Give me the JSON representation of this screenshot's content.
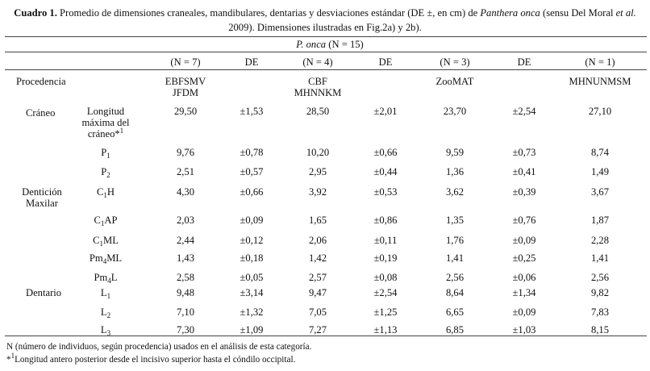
{
  "caption": {
    "label": "Cuadro 1.",
    "text_a": " Promedio de dimensiones craneales, mandibulares, dentarias y desviaciones estándar (DE ±, en cm) de ",
    "species": "Panthera onca",
    "text_b": " (sensu Del Moral ",
    "etal": "et al.",
    "text_c": " 2009). Dimensiones ilustradas en Fig.2a) y 2b)."
  },
  "table": {
    "group_header": {
      "species": "P. onca",
      "count": " (N = 15)"
    },
    "column_headers": [
      "(N = 7)",
      "DE",
      "(N = 4)",
      "DE",
      "(N = 3)",
      "DE",
      "(N = 1)"
    ],
    "procedencia": {
      "label": "Procedencia",
      "values": [
        [
          "EBFSMV",
          "JFDM"
        ],
        [
          "CBF",
          "MHNNKM"
        ],
        [
          "ZooMAT"
        ],
        [
          "MHNUNMSM"
        ]
      ]
    },
    "groups": {
      "craneo": "Cráneo",
      "denticion_line1": "Dentición",
      "denticion_line2": "Maxilar",
      "dentario": "Dentario"
    },
    "craneo_row": {
      "label_lines": [
        "Longitud",
        "máxima del",
        "cráneo*"
      ],
      "label_note": "1",
      "values": [
        "29,50",
        "±1,53",
        "28,50",
        "±2,01",
        "23,70",
        "±2,54",
        "27,10"
      ]
    },
    "rows": [
      {
        "base": "P",
        "sub": "1",
        "suffix": "",
        "values": [
          "9,76",
          "±0,78",
          "10,20",
          "±0,66",
          "9,59",
          "±0,73",
          "8,74"
        ]
      },
      {
        "base": "P",
        "sub": "2",
        "suffix": "",
        "values": [
          "2,51",
          "±0,57",
          "2,95",
          "±0,44",
          "1,36",
          "±0,41",
          "1,49"
        ]
      },
      {
        "base": "C",
        "sub": "1",
        "suffix": "H",
        "values": [
          "4,30",
          "±0,66",
          "3,92",
          "±0,53",
          "3,62",
          "±0,39",
          "3,67"
        ]
      },
      {
        "base": "C",
        "sub": "1",
        "suffix": "AP",
        "values": [
          "2,03",
          "±0,09",
          "1,65",
          "±0,86",
          "1,35",
          "±0,76",
          "1,87"
        ]
      },
      {
        "base": "C",
        "sub": "1",
        "suffix": "ML",
        "values": [
          "2,44",
          "±0,12",
          "2,06",
          "±0,11",
          "1,76",
          "±0,09",
          "2,28"
        ]
      },
      {
        "base": "Pm",
        "sub": "4",
        "suffix": "ML",
        "values": [
          "1,43",
          "±0,18",
          "1,42",
          "±0,19",
          "1,41",
          "±0,25",
          "1,41"
        ]
      },
      {
        "base": "Pm",
        "sub": "4",
        "suffix": "L",
        "values": [
          "2,58",
          "±0,05",
          "2,57",
          "±0,08",
          "2,56",
          "±0,06",
          "2,56"
        ]
      },
      {
        "base": "L",
        "sub": "1",
        "suffix": "",
        "values": [
          "9,48",
          "±3,14",
          "9,47",
          "±2,54",
          "8,64",
          "±1,34",
          "9,82"
        ]
      },
      {
        "base": "L",
        "sub": "2",
        "suffix": "",
        "values": [
          "7,10",
          "±1,32",
          "7,05",
          "±1,25",
          "6,65",
          "±0,09",
          "7,83"
        ]
      },
      {
        "base": "L",
        "sub": "3",
        "suffix": "",
        "values": [
          "7,30",
          "±1,09",
          "7,27",
          "±1,13",
          "6,85",
          "±1,03",
          "8,15"
        ]
      }
    ]
  },
  "footnotes": {
    "n_note": "N (número de individuos, según procedencia) usados en el análisis de esta categoría.",
    "star_mark": "*",
    "star_sup": "1",
    "star_text": "Longitud antero posterior desde el incisivo superior hasta el cóndilo occipital."
  }
}
